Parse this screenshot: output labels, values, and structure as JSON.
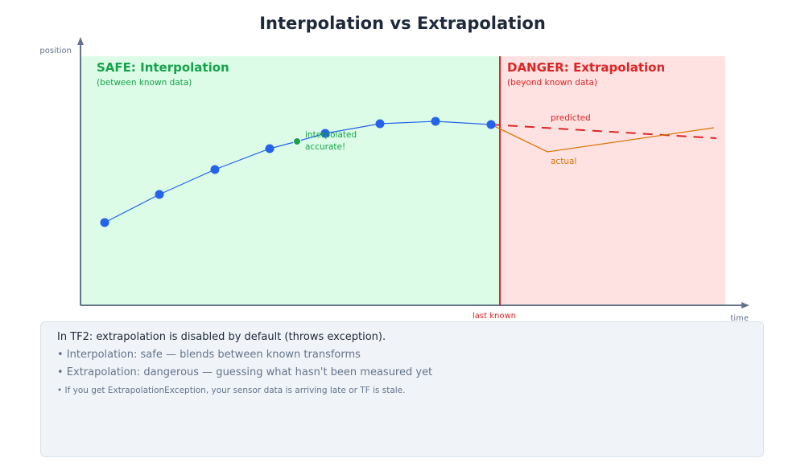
{
  "title": "Interpolation vs Extrapolation",
  "axes": {
    "y_label": "position",
    "x_label": "time",
    "marker_label": "last known"
  },
  "safe_zone": {
    "title": "SAFE: Interpolation",
    "subtitle": "(between known data)",
    "color": "#16a34a"
  },
  "danger_zone": {
    "title": "DANGER: Extrapolation",
    "subtitle": "(beyond known data)",
    "color": "#dc2626"
  },
  "annotations": {
    "interpolated_1": "interpolated",
    "interpolated_2": "accurate!",
    "predicted": "predicted",
    "actual": "actual"
  },
  "colors": {
    "known_points": "#2563eb",
    "interpolated_point": "#16a34a",
    "predicted": "#dc2626",
    "actual": "#d97706"
  },
  "note": {
    "heading": "In TF2: extrapolation is disabled by default (throws exception).",
    "bullets": [
      "• Interpolation: safe — blends between known transforms",
      "• Extrapolation: dangerous — guessing what hasn't been measured yet",
      "• If you get ExtrapolationException, your sensor data is arriving late or TF is stale."
    ]
  }
}
